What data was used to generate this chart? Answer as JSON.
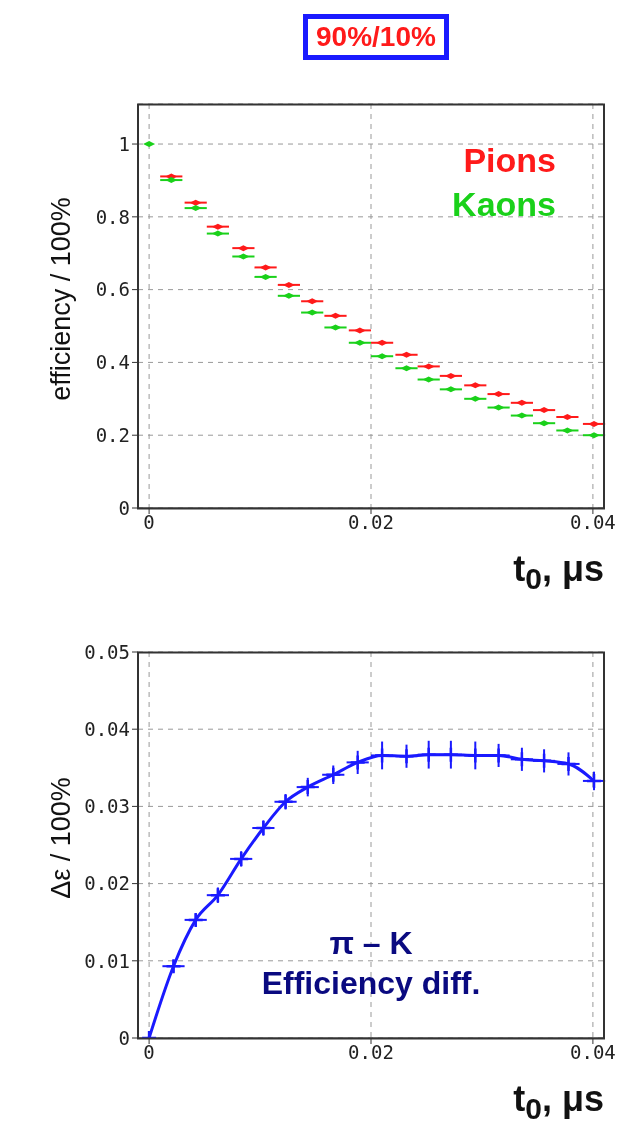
{
  "chart_data": [
    {
      "type": "scatter",
      "title": "90%/10%",
      "xlabel": "t$_{0}$, μs",
      "ylabel": "efficiency / 100%",
      "x": [
        0,
        0.002,
        0.0042,
        0.0062,
        0.0085,
        0.0105,
        0.0126,
        0.0147,
        0.0168,
        0.019,
        0.021,
        0.0232,
        0.0252,
        0.0272,
        0.0294,
        0.0315,
        0.0336,
        0.0356,
        0.0377,
        0.0401
      ],
      "series": [
        {
          "name": "Pions",
          "color": "#ff1a1a",
          "values": [
            null,
            0.911,
            0.839,
            0.773,
            0.714,
            0.661,
            0.613,
            0.568,
            0.528,
            0.488,
            0.454,
            0.421,
            0.389,
            0.363,
            0.337,
            0.313,
            0.289,
            0.269,
            0.25,
            0.231
          ],
          "xerrors": [
            null,
            0.001,
            0.001,
            0.001,
            0.001,
            0.001,
            0.001,
            0.001,
            0.001,
            0.001,
            0.001,
            0.001,
            0.001,
            0.001,
            0.001,
            0.001,
            0.001,
            0.001,
            0.001,
            0.001
          ]
        },
        {
          "name": "Kaons",
          "color": "#1ad11a",
          "values": [
            1,
            0.901,
            0.824,
            0.754,
            0.691,
            0.635,
            0.583,
            0.537,
            0.496,
            0.454,
            0.417,
            0.384,
            0.353,
            0.326,
            0.3,
            0.276,
            0.254,
            0.233,
            0.213,
            0.2
          ],
          "xerrors": [
            null,
            0.001,
            0.001,
            0.001,
            0.001,
            0.001,
            0.001,
            0.001,
            0.001,
            0.001,
            0.001,
            0.001,
            0.001,
            0.001,
            0.001,
            0.001,
            0.001,
            0.001,
            0.001,
            0.001
          ]
        }
      ],
      "xlim": [
        -0.001,
        0.041
      ],
      "xticks": [
        0,
        0.02,
        0.04
      ],
      "ylim": [
        0,
        1.11
      ],
      "yticks": [
        0,
        0.2,
        0.4,
        0.6,
        0.8,
        1
      ],
      "grid": true,
      "legend": "top right",
      "marker": "diamond"
    },
    {
      "type": "line",
      "xlabel": "t$_{0}$, μs",
      "ylabel": "Δε / 100%",
      "annotations": [
        "π – K",
        "Efficiency diff."
      ],
      "x": [
        0,
        0.0022,
        0.0042,
        0.0062,
        0.0083,
        0.0103,
        0.0123,
        0.0143,
        0.0166,
        0.0188,
        0.021,
        0.0232,
        0.0252,
        0.0272,
        0.0294,
        0.0315,
        0.0336,
        0.0356,
        0.0378,
        0.0401
      ],
      "series": [
        {
          "color": "#1a1aff",
          "values": [
            0,
            0.0093,
            0.0153,
            0.0185,
            0.0232,
            0.0272,
            0.0306,
            0.0325,
            0.0341,
            0.0357,
            0.0366,
            0.0365,
            0.0367,
            0.0367,
            0.0366,
            0.0366,
            0.0361,
            0.0359,
            0.0355,
            0.0333
          ],
          "errors": [
            null,
            0.0008,
            0.0008,
            0.001,
            0.001,
            0.001,
            0.001,
            0.0012,
            0.0012,
            0.0015,
            0.0018,
            0.0015,
            0.0018,
            0.0018,
            0.0018,
            0.0015,
            0.0015,
            0.0015,
            0.0015,
            0.0012
          ],
          "xerrors": [
            null,
            0.001,
            0.001,
            0.001,
            0.001,
            0.001,
            0.001,
            0.001,
            0.001,
            0.001,
            0.001,
            0.001,
            0.001,
            0.001,
            0.001,
            0.001,
            0.001,
            0.001,
            0.001,
            0.001
          ]
        }
      ],
      "xlim": [
        -0.001,
        0.041
      ],
      "xticks": [
        0,
        0.02,
        0.04
      ],
      "ylim": [
        0,
        0.05
      ],
      "yticks": [
        0,
        0.01,
        0.02,
        0.03,
        0.04,
        0.05
      ],
      "grid": true,
      "marker": "cross"
    }
  ]
}
